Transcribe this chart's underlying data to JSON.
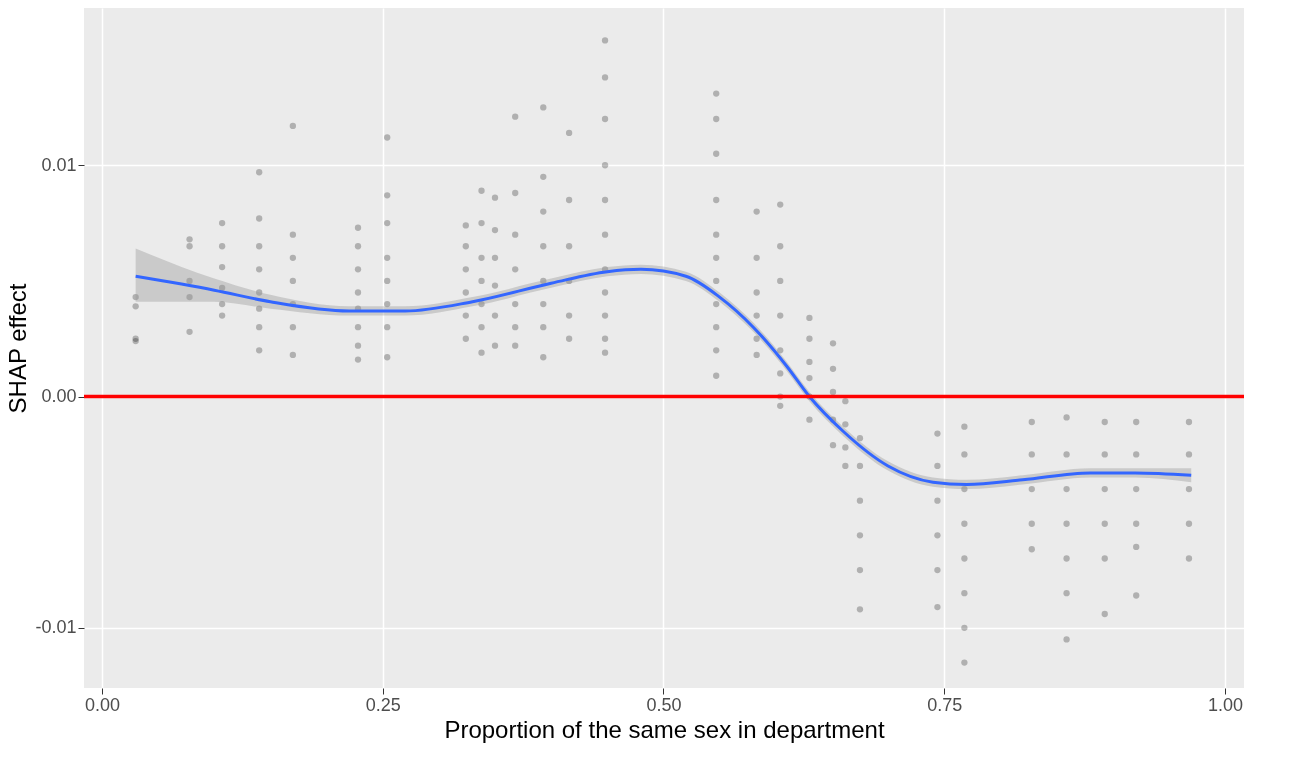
{
  "chart_data": {
    "type": "scatter",
    "xlabel": "Proportion of the same sex in department",
    "ylabel": "SHAP effect",
    "xlim": [
      -0.016,
      1.017
    ],
    "ylim": [
      -0.0126,
      0.0168
    ],
    "xticks": [
      {
        "value": 0,
        "label": "0.00"
      },
      {
        "value": 0.25,
        "label": "0.25"
      },
      {
        "value": 0.5,
        "label": "0.50"
      },
      {
        "value": 0.75,
        "label": "0.75"
      },
      {
        "value": 1,
        "label": "1.00"
      }
    ],
    "yticks": [
      {
        "value": -0.01,
        "label": "-0.01"
      },
      {
        "value": 0,
        "label": "0.00"
      },
      {
        "value": 0.01,
        "label": "0.01"
      }
    ],
    "grid": true,
    "series": [
      {
        "color": "#000000",
        "marker": "circle",
        "x": [
          0.03,
          0.03,
          0.03,
          0.03,
          0.078,
          0.078,
          0.078,
          0.078,
          0.078,
          0.107,
          0.107,
          0.107,
          0.107,
          0.107,
          0.107,
          0.14,
          0.14,
          0.14,
          0.14,
          0.14,
          0.14,
          0.14,
          0.14,
          0.17,
          0.17,
          0.17,
          0.17,
          0.17,
          0.17,
          0.17,
          0.228,
          0.228,
          0.228,
          0.228,
          0.228,
          0.228,
          0.228,
          0.228,
          0.254,
          0.254,
          0.254,
          0.254,
          0.254,
          0.254,
          0.254,
          0.254,
          0.324,
          0.324,
          0.324,
          0.324,
          0.324,
          0.324,
          0.338,
          0.338,
          0.338,
          0.338,
          0.338,
          0.338,
          0.338,
          0.35,
          0.35,
          0.35,
          0.35,
          0.35,
          0.35,
          0.368,
          0.368,
          0.368,
          0.368,
          0.368,
          0.368,
          0.368,
          0.393,
          0.393,
          0.393,
          0.393,
          0.393,
          0.393,
          0.393,
          0.393,
          0.416,
          0.416,
          0.416,
          0.416,
          0.416,
          0.416,
          0.448,
          0.448,
          0.448,
          0.448,
          0.448,
          0.448,
          0.448,
          0.448,
          0.448,
          0.448,
          0.448,
          0.547,
          0.547,
          0.547,
          0.547,
          0.547,
          0.547,
          0.547,
          0.547,
          0.547,
          0.547,
          0.547,
          0.583,
          0.583,
          0.583,
          0.583,
          0.583,
          0.583,
          0.604,
          0.604,
          0.604,
          0.604,
          0.604,
          0.604,
          0.604,
          0.604,
          0.63,
          0.63,
          0.63,
          0.63,
          0.63,
          0.63,
          0.651,
          0.651,
          0.651,
          0.651,
          0.651,
          0.662,
          0.662,
          0.662,
          0.662,
          0.675,
          0.675,
          0.675,
          0.675,
          0.675,
          0.675,
          0.744,
          0.744,
          0.744,
          0.744,
          0.744,
          0.744,
          0.768,
          0.768,
          0.768,
          0.768,
          0.768,
          0.768,
          0.768,
          0.768,
          0.828,
          0.828,
          0.828,
          0.828,
          0.828,
          0.859,
          0.859,
          0.859,
          0.859,
          0.859,
          0.859,
          0.859,
          0.893,
          0.893,
          0.893,
          0.893,
          0.893,
          0.893,
          0.921,
          0.921,
          0.921,
          0.921,
          0.921,
          0.921,
          0.968,
          0.968,
          0.968,
          0.968,
          0.968
        ],
        "values": [
          0.0043,
          0.0039,
          0.0025,
          0.0024,
          0.0068,
          0.0065,
          0.005,
          0.0043,
          0.0028,
          0.0075,
          0.0065,
          0.0056,
          0.0047,
          0.004,
          0.0035,
          0.0097,
          0.0077,
          0.0065,
          0.0055,
          0.0045,
          0.0038,
          0.003,
          0.002,
          0.0117,
          0.007,
          0.006,
          0.005,
          0.004,
          0.003,
          0.0018,
          0.0073,
          0.0065,
          0.0055,
          0.0045,
          0.0038,
          0.003,
          0.0022,
          0.0016,
          0.0112,
          0.0087,
          0.0075,
          0.006,
          0.005,
          0.004,
          0.003,
          0.0017,
          0.0074,
          0.0065,
          0.0055,
          0.0045,
          0.0035,
          0.0025,
          0.0089,
          0.0075,
          0.006,
          0.005,
          0.004,
          0.003,
          0.0019,
          0.0086,
          0.0072,
          0.006,
          0.0048,
          0.0035,
          0.0022,
          0.0121,
          0.0088,
          0.007,
          0.0055,
          0.004,
          0.003,
          0.0022,
          0.0125,
          0.0095,
          0.008,
          0.0065,
          0.005,
          0.004,
          0.003,
          0.0017,
          0.0114,
          0.0085,
          0.0065,
          0.005,
          0.0035,
          0.0025,
          0.0154,
          0.0138,
          0.012,
          0.01,
          0.0085,
          0.007,
          0.0055,
          0.0045,
          0.0035,
          0.0025,
          0.0019,
          0.0131,
          0.012,
          0.0105,
          0.0085,
          0.007,
          0.006,
          0.005,
          0.004,
          0.003,
          0.002,
          0.0009,
          0.008,
          0.006,
          0.0045,
          0.0035,
          0.0025,
          0.0018,
          0.0083,
          0.0065,
          0.005,
          0.0035,
          0.002,
          0.001,
          0.0,
          -0.0004,
          0.0034,
          0.0025,
          0.0015,
          0.0008,
          0.0,
          -0.001,
          0.0023,
          0.0012,
          0.0002,
          -0.001,
          -0.0021,
          -0.0002,
          -0.0012,
          -0.0022,
          -0.003,
          -0.0018,
          -0.003,
          -0.0045,
          -0.006,
          -0.0075,
          -0.0092,
          -0.0016,
          -0.003,
          -0.0045,
          -0.006,
          -0.0075,
          -0.0091,
          -0.0013,
          -0.0025,
          -0.004,
          -0.0055,
          -0.007,
          -0.0085,
          -0.01,
          -0.0115,
          -0.0011,
          -0.0025,
          -0.004,
          -0.0055,
          -0.0066,
          -0.0009,
          -0.0025,
          -0.004,
          -0.0055,
          -0.007,
          -0.0085,
          -0.0105,
          -0.0011,
          -0.0025,
          -0.004,
          -0.0055,
          -0.007,
          -0.0094,
          -0.0011,
          -0.0025,
          -0.004,
          -0.0055,
          -0.0065,
          -0.0086,
          -0.0011,
          -0.0025,
          -0.004,
          -0.0055,
          -0.007
        ]
      },
      {
        "type": "line",
        "color": "#3366ff",
        "x": [
          0.03,
          0.1,
          0.15,
          0.22,
          0.27,
          0.33,
          0.4,
          0.45,
          0.48,
          0.52,
          0.55,
          0.58,
          0.61,
          0.63,
          0.66,
          0.7,
          0.74,
          0.77,
          0.82,
          0.88,
          0.92,
          0.97
        ],
        "values": [
          0.0052,
          0.0046,
          0.0041,
          0.0037,
          0.0037,
          0.0041,
          0.0049,
          0.0054,
          0.0055,
          0.0052,
          0.0043,
          0.003,
          0.0013,
          0.0,
          -0.0015,
          -0.003,
          -0.0037,
          -0.0038,
          -0.0036,
          -0.0033,
          -0.0033,
          -0.0034
        ],
        "lower": [
          0.0041,
          0.0041,
          0.0038,
          0.0035,
          0.0035,
          0.0039,
          0.0047,
          0.0052,
          0.0053,
          0.005,
          0.0041,
          0.0028,
          0.0011,
          -0.0002,
          -0.0017,
          -0.0032,
          -0.0039,
          -0.004,
          -0.0038,
          -0.0035,
          -0.0035,
          -0.0037
        ],
        "upper": [
          0.0064,
          0.0051,
          0.0044,
          0.0039,
          0.0039,
          0.0043,
          0.0051,
          0.0056,
          0.0057,
          0.0054,
          0.0045,
          0.0032,
          0.0015,
          0.0002,
          -0.0013,
          -0.0028,
          -0.0035,
          -0.0036,
          -0.0034,
          -0.0031,
          -0.0031,
          -0.0031
        ]
      }
    ],
    "ref_lines": [
      {
        "axis": "y",
        "value": 0,
        "color": "#ff0000"
      }
    ]
  }
}
